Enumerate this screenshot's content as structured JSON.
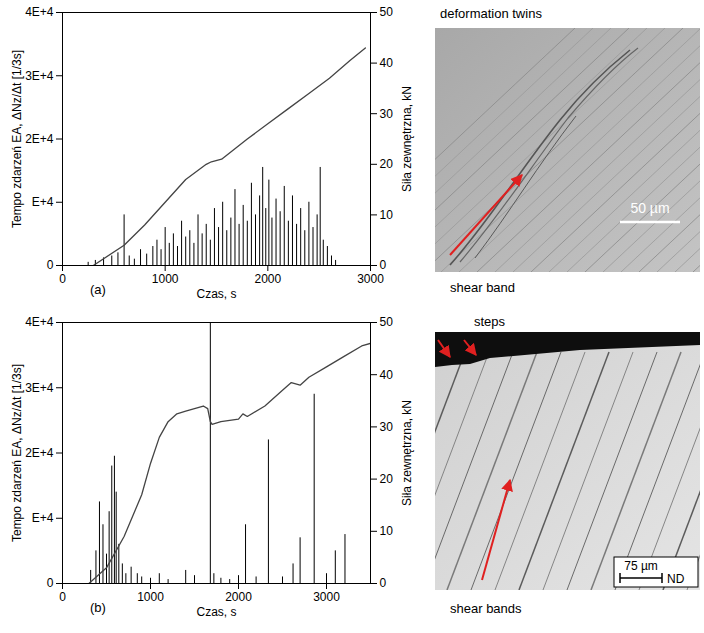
{
  "chart_data": [
    {
      "type": "bar",
      "panel_label": "(a)",
      "x_label": "Czas, s",
      "y_label": "Tempo zdarzeń EA, ΔNz/Δt [1/3s]",
      "y2_label": "Siła zewnętrzna, kN",
      "xlim": [
        0,
        3000
      ],
      "xticks": [
        0,
        1000,
        2000,
        3000
      ],
      "ylim": [
        0,
        40000
      ],
      "yticks": [
        0,
        {
          "value": 10000,
          "label": "E+4"
        },
        {
          "value": 20000,
          "label": "2E+4"
        },
        {
          "value": 30000,
          "label": "3E+4"
        },
        {
          "value": 40000,
          "label": "4E+4"
        }
      ],
      "y2lim": [
        0,
        50
      ],
      "y2ticks": [
        0,
        10,
        20,
        30,
        40,
        50
      ],
      "series": [
        {
          "type": "bar",
          "color": "#000000",
          "x": [
            250,
            320,
            400,
            480,
            540,
            600,
            650,
            700,
            760,
            820,
            880,
            920,
            960,
            1000,
            1040,
            1080,
            1120,
            1160,
            1200,
            1240,
            1280,
            1320,
            1360,
            1400,
            1440,
            1480,
            1520,
            1560,
            1600,
            1640,
            1680,
            1720,
            1760,
            1800,
            1840,
            1880,
            1920,
            1950,
            1980,
            2010,
            2040,
            2080,
            2120,
            2160,
            2200,
            2240,
            2280,
            2320,
            2360,
            2400,
            2440,
            2480,
            2510,
            2540,
            2580,
            2620,
            2660
          ],
          "values": [
            500,
            800,
            1200,
            1500,
            2000,
            8000,
            1500,
            1000,
            2500,
            1800,
            3000,
            4000,
            2500,
            6000,
            3500,
            5000,
            3000,
            7000,
            4500,
            5500,
            3500,
            8000,
            5000,
            6500,
            4000,
            9000,
            6000,
            10000,
            5500,
            7500,
            12000,
            6500,
            9500,
            7000,
            13000,
            8000,
            11000,
            15500,
            9000,
            13500,
            7500,
            10500,
            8500,
            12500,
            7000,
            11000,
            6500,
            9000,
            5500,
            10000,
            6000,
            8000,
            15500,
            4000,
            3000,
            1500,
            800
          ]
        },
        {
          "type": "line",
          "axis": "y2",
          "color": "#444444",
          "x": [
            300,
            600,
            800,
            1000,
            1200,
            1400,
            1450,
            1550,
            1800,
            2000,
            2200,
            2400,
            2600,
            2800,
            2950
          ],
          "values": [
            0,
            4,
            8,
            12.5,
            17,
            20,
            20.5,
            21,
            25,
            28,
            31,
            34,
            37,
            40.5,
            43
          ]
        }
      ]
    },
    {
      "type": "bar",
      "panel_label": "(b)",
      "x_label": "Czas, s",
      "y_label": "Tempo zdarzeń EA, ΔNz/Δt [1/3s]",
      "y2_label": "Siła zewnętrzna, kN",
      "xlim": [
        0,
        3500
      ],
      "xticks": [
        0,
        1000,
        2000,
        3000
      ],
      "ylim": [
        0,
        40000
      ],
      "yticks": [
        0,
        {
          "value": 10000,
          "label": "E+4"
        },
        {
          "value": 20000,
          "label": "2E+4"
        },
        {
          "value": 30000,
          "label": "3E+4"
        },
        {
          "value": 40000,
          "label": "4E+4"
        }
      ],
      "y2lim": [
        0,
        50
      ],
      "y2ticks": [
        0,
        10,
        20,
        30,
        40,
        50
      ],
      "series": [
        {
          "type": "bar",
          "color": "#000000",
          "x": [
            320,
            380,
            420,
            460,
            500,
            530,
            560,
            590,
            610,
            640,
            680,
            720,
            780,
            850,
            900,
            1000,
            1100,
            1200,
            1400,
            1500,
            1680,
            1720,
            1800,
            1900,
            2000,
            2080,
            2200,
            2340,
            2500,
            2620,
            2700,
            2860,
            3000,
            3100,
            3210
          ],
          "values": [
            2000,
            5000,
            12500,
            9000,
            4500,
            11000,
            18000,
            19500,
            14000,
            6000,
            3000,
            1500,
            2500,
            1500,
            1000,
            800,
            1500,
            600,
            2000,
            1200,
            40000,
            1500,
            800,
            600,
            1200,
            9000,
            1000,
            22000,
            1000,
            3000,
            7000,
            29000,
            1500,
            5000,
            7500
          ]
        },
        {
          "type": "line",
          "axis": "y2",
          "color": "#444444",
          "x": [
            300,
            500,
            700,
            900,
            1000,
            1100,
            1200,
            1300,
            1400,
            1600,
            1650,
            1680,
            1700,
            1800,
            2000,
            2050,
            2100,
            2300,
            2500,
            2600,
            2700,
            2800,
            3000,
            3200,
            3400,
            3500
          ],
          "values": [
            0,
            3,
            9,
            17,
            23,
            28,
            31,
            32.5,
            33,
            34,
            33.5,
            31,
            30.5,
            31,
            31.5,
            32.5,
            32,
            34,
            37,
            38.5,
            38,
            39.5,
            41.5,
            43.5,
            45.5,
            46
          ]
        }
      ]
    }
  ],
  "images": [
    {
      "top_label": "deformation twins",
      "bottom_label": "shear band",
      "scale_bar": "50 µm"
    },
    {
      "top_label": "steps",
      "bottom_label": "shear bands",
      "scale_bar": "75 µm",
      "direction": "ND"
    }
  ]
}
